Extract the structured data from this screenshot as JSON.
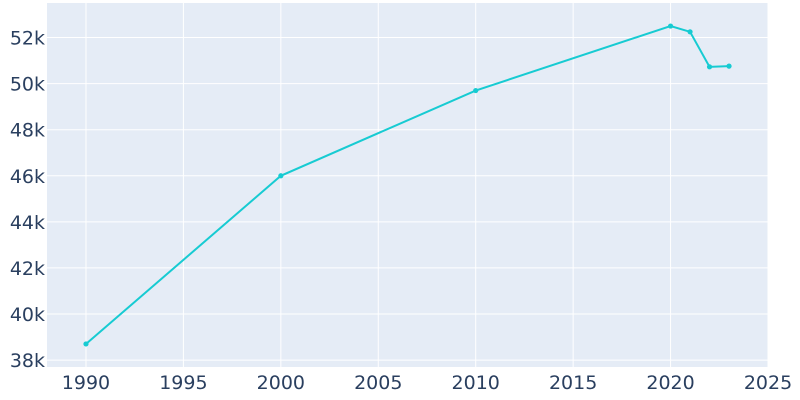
{
  "chart_data": {
    "type": "line",
    "title": "",
    "xlabel": "",
    "ylabel": "",
    "x": [
      1990,
      2000,
      2010,
      2020,
      2021,
      2022,
      2023
    ],
    "series": [
      {
        "values": [
          38700,
          46000,
          49700,
          52500,
          52250,
          50730,
          50760
        ]
      }
    ],
    "xlim": [
      1988,
      2025
    ],
    "ylim": [
      37700,
      53500
    ],
    "x_ticks": [
      1990,
      1995,
      2000,
      2005,
      2010,
      2015,
      2020,
      2025
    ],
    "x_tick_labels": [
      "1990",
      "1995",
      "2000",
      "2005",
      "2010",
      "2015",
      "2020",
      "2025"
    ],
    "y_ticks": [
      38000,
      40000,
      42000,
      44000,
      46000,
      48000,
      50000,
      52000
    ],
    "y_tick_labels": [
      "38k",
      "40k",
      "42k",
      "44k",
      "46k",
      "48k",
      "50k",
      "52k"
    ],
    "grid": true,
    "legend": "none",
    "colors": {
      "line": "#17cbd2",
      "plot_background": "#e5ecf6",
      "grid": "#ffffff",
      "tick_text": "#2a3f5f"
    }
  }
}
